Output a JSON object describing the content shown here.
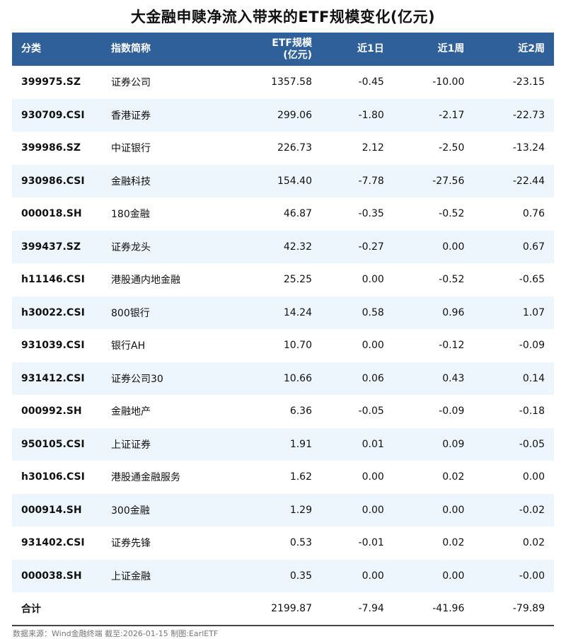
{
  "title": "大金融申赎净流入带来的ETF规模变化(亿元)",
  "columns_header": {
    "c0": "分类",
    "c1": "指数简称",
    "c2a": "ETF规模",
    "c2b": "(亿元)",
    "c3": "近1日",
    "c4": "近1周",
    "c5": "近2周"
  },
  "rows": [
    [
      "399975.SZ",
      "证券公司",
      "1357.58",
      "-0.45",
      "-10.00",
      "-23.15"
    ],
    [
      "930709.CSI",
      "香港证券",
      "299.06",
      "-1.80",
      "-2.17",
      "-22.73"
    ],
    [
      "399986.SZ",
      "中证银行",
      "226.73",
      "2.12",
      "-2.50",
      "-13.24"
    ],
    [
      "930986.CSI",
      "金融科技",
      "154.40",
      "-7.78",
      "-27.56",
      "-22.44"
    ],
    [
      "000018.SH",
      "180金融",
      "46.87",
      "-0.35",
      "-0.52",
      "0.76"
    ],
    [
      "399437.SZ",
      "证券龙头",
      "42.32",
      "-0.27",
      "0.00",
      "0.67"
    ],
    [
      "h11146.CSI",
      "港股通内地金融",
      "25.25",
      "0.00",
      "-0.52",
      "-0.65"
    ],
    [
      "h30022.CSI",
      "800银行",
      "14.24",
      "0.58",
      "0.96",
      "1.07"
    ],
    [
      "931039.CSI",
      "银行AH",
      "10.70",
      "0.00",
      "-0.12",
      "-0.09"
    ],
    [
      "931412.CSI",
      "证券公司30",
      "10.66",
      "0.06",
      "0.43",
      "0.14"
    ],
    [
      "000992.SH",
      "金融地产",
      "6.36",
      "-0.05",
      "-0.09",
      "-0.18"
    ],
    [
      "950105.CSI",
      "上证证券",
      "1.91",
      "0.01",
      "0.09",
      "-0.05"
    ],
    [
      "h30106.CSI",
      "港股通金融服务",
      "1.62",
      "0.00",
      "0.02",
      "0.00"
    ],
    [
      "000914.SH",
      "300金融",
      "1.29",
      "0.00",
      "0.00",
      "-0.02"
    ],
    [
      "931402.CSI",
      "证券先锋",
      "0.53",
      "-0.01",
      "0.02",
      "0.02"
    ],
    [
      "000038.SH",
      "上证金融",
      "0.35",
      "0.00",
      "0.00",
      "-0.00"
    ]
  ],
  "total": [
    "合计",
    "",
    "2199.87",
    "-7.94",
    "-41.96",
    "-79.89"
  ],
  "source": "数据来源：Wind金融终端 截至:2026-01-15 制图:EarlETF",
  "colors": {
    "header_bg": "#2f6099",
    "stripe": "#eef6fd"
  }
}
